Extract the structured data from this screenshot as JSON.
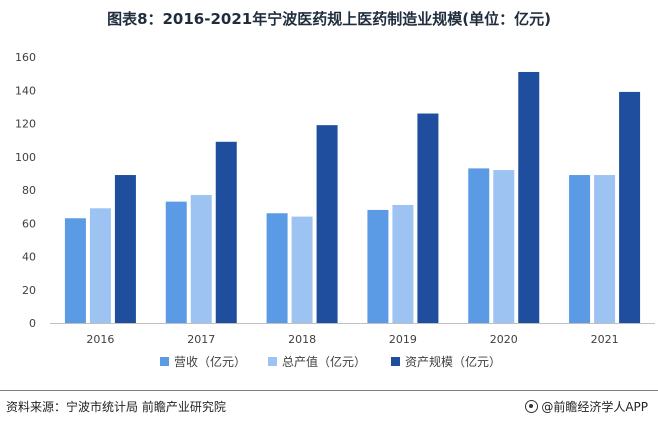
{
  "title": "图表8：2016-2021年宁波医药规上医药制造业规模(单位：亿元)",
  "source": "资料来源：宁波市统计局 前瞻产业研究院",
  "brand": "@前瞻经济学人APP",
  "colors": {
    "revenue": "#5B9BE5",
    "output": "#9DC3F3",
    "assets": "#1F4E9E",
    "axis": "#bfbfbf"
  },
  "chart_data": {
    "type": "bar",
    "categories": [
      "2016",
      "2017",
      "2018",
      "2019",
      "2020",
      "2021"
    ],
    "series": [
      {
        "name": "营收（亿元）",
        "values": [
          63,
          73,
          66,
          68,
          93,
          89
        ]
      },
      {
        "name": "总产值（亿元）",
        "values": [
          69,
          77,
          64,
          71,
          92,
          89
        ]
      },
      {
        "name": "资产规模（亿元）",
        "values": [
          89,
          109,
          119,
          126,
          151,
          139
        ]
      }
    ],
    "ylim": [
      0,
      160
    ],
    "yticks": [
      0,
      20,
      40,
      60,
      80,
      100,
      120,
      140,
      160
    ],
    "legend_position": "bottom"
  }
}
